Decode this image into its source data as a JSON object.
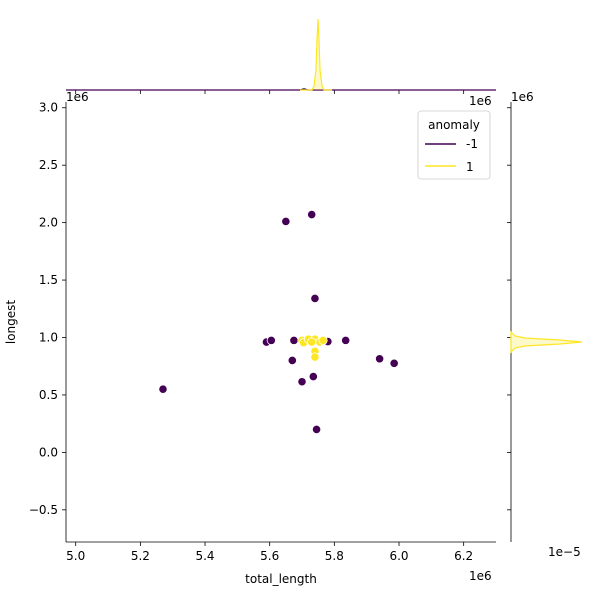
{
  "chart_data": {
    "type": "scatter",
    "xlabel": "total_length",
    "ylabel": "longest",
    "x_offset_label": "1e6",
    "y_offset_label": "1e6",
    "xlim": [
      4.97,
      6.3
    ],
    "ylim": [
      -0.78,
      3.05
    ],
    "x_ticks": [
      "5.0",
      "5.2",
      "5.4",
      "5.6",
      "5.8",
      "6.0",
      "6.2"
    ],
    "y_ticks": [
      "−0.5",
      "0.0",
      "0.5",
      "1.0",
      "1.5",
      "2.0",
      "2.5",
      "3.0"
    ],
    "legend": {
      "title": "anomaly",
      "position": "top-right"
    },
    "series": [
      {
        "name": "-1",
        "color": "#440154",
        "points": [
          [
            5.27,
            0.55
          ],
          [
            5.59,
            0.96
          ],
          [
            5.605,
            0.975
          ],
          [
            5.67,
            0.8
          ],
          [
            5.675,
            0.975
          ],
          [
            5.7,
            0.615
          ],
          [
            5.735,
            0.66
          ],
          [
            5.745,
            0.2
          ],
          [
            5.74,
            1.34
          ],
          [
            5.65,
            2.01
          ],
          [
            5.73,
            2.07
          ],
          [
            5.78,
            0.965
          ],
          [
            5.835,
            0.975
          ],
          [
            5.94,
            0.815
          ],
          [
            5.985,
            0.775
          ]
        ]
      },
      {
        "name": "1",
        "color": "#fde725",
        "points": [
          [
            5.7,
            0.975
          ],
          [
            5.705,
            0.955
          ],
          [
            5.72,
            0.985
          ],
          [
            5.74,
            0.985
          ],
          [
            5.755,
            0.96
          ],
          [
            5.765,
            0.975
          ],
          [
            5.74,
            0.88
          ],
          [
            5.74,
            0.83
          ],
          [
            5.73,
            0.96
          ]
        ]
      }
    ],
    "marginal_right_scale_label": "1e−5"
  }
}
